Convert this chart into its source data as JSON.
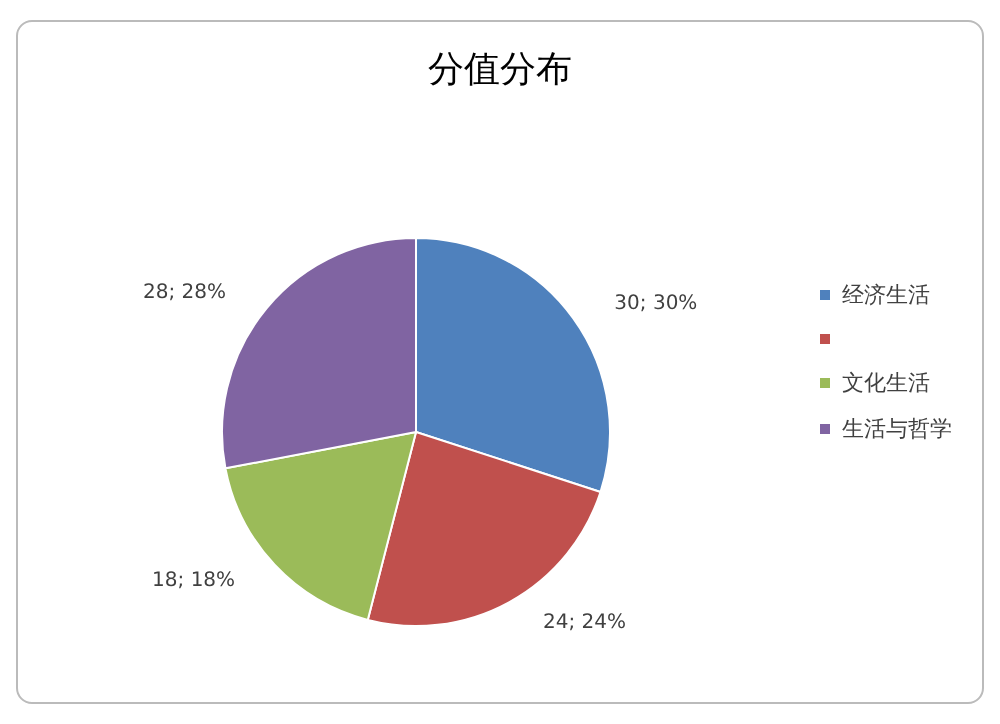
{
  "chart_data": {
    "type": "pie",
    "title": "分值分布",
    "categories": [
      "经济生活",
      null,
      "文化生活",
      "生活与哲学"
    ],
    "values": [
      30,
      24,
      18,
      28
    ],
    "colors": [
      "#4f81bd",
      "#c0504d",
      "#9bbb59",
      "#8064a2"
    ],
    "value_labels": [
      "30; 30%",
      "24; 24%",
      "18; 18%",
      "28; 28%"
    ],
    "legend": "right"
  }
}
